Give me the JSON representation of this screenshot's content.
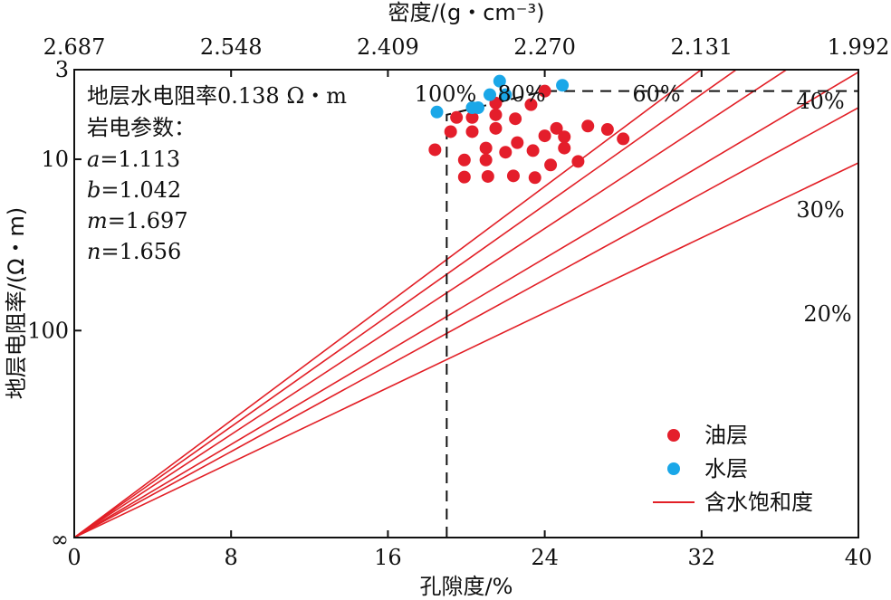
{
  "chart_data": {
    "type": "scatter",
    "x_axis": {
      "label": "孔隙度/%",
      "range": [
        0,
        40
      ],
      "ticks": [
        "0",
        "8",
        "16",
        "24",
        "32",
        "40"
      ]
    },
    "top_axis": {
      "label": "密度/(g・cm⁻³)",
      "ticks": [
        "2.687",
        "2.548",
        "2.409",
        "2.270",
        "2.131",
        "1.992"
      ]
    },
    "y_axis": {
      "label": "地层电阻率/(Ω・m)",
      "scale": "log",
      "inverted": true,
      "ticks": [
        "3",
        "10",
        "100",
        "∞"
      ]
    },
    "annotation": {
      "line1": "地层水电阻率0.138 Ω・m",
      "line2": "岩电参数：",
      "params": [
        {
          "sym": "a",
          "val": "=1.113"
        },
        {
          "sym": "b",
          "val": "=1.042"
        },
        {
          "sym": "m",
          "val": "=1.697"
        },
        {
          "sym": "n",
          "val": "=1.656"
        }
      ]
    },
    "saturation_lines": [
      {
        "label": "100%",
        "resistivity_at_40": 0.62
      },
      {
        "label": "80%",
        "resistivity_at_40": 0.94
      },
      {
        "label": "60%",
        "resistivity_at_40": 1.59
      },
      {
        "label": "40%",
        "resistivity_at_40": 3.1
      },
      {
        "label": "30%",
        "resistivity_at_40": 5.0
      },
      {
        "label": "20%",
        "resistivity_at_40": 10.5
      }
    ],
    "series": [
      {
        "name": "油层",
        "color": "#e41e2b",
        "points": [
          [
            24.0,
            4.0
          ],
          [
            21.5,
            4.7
          ],
          [
            23.3,
            4.8
          ],
          [
            19.5,
            5.7
          ],
          [
            20.3,
            5.7
          ],
          [
            21.5,
            5.5
          ],
          [
            22.5,
            5.8
          ],
          [
            19.2,
            6.9
          ],
          [
            20.3,
            6.9
          ],
          [
            21.5,
            6.6
          ],
          [
            24.6,
            6.6
          ],
          [
            26.2,
            6.4
          ],
          [
            27.2,
            6.7
          ],
          [
            24.0,
            7.3
          ],
          [
            25.0,
            7.4
          ],
          [
            28.0,
            7.6
          ],
          [
            22.6,
            8.0
          ],
          [
            18.4,
            8.8
          ],
          [
            21.0,
            8.6
          ],
          [
            22.0,
            9.1
          ],
          [
            23.4,
            8.9
          ],
          [
            25.0,
            8.6
          ],
          [
            19.9,
            10.1
          ],
          [
            21.0,
            10.1
          ],
          [
            24.3,
            10.8
          ],
          [
            25.7,
            10.3
          ],
          [
            19.9,
            12.7
          ],
          [
            21.1,
            12.6
          ],
          [
            22.4,
            12.5
          ],
          [
            23.5,
            12.8
          ]
        ]
      },
      {
        "name": "水层",
        "color": "#1aa7e8",
        "points": [
          [
            21.7,
            3.5
          ],
          [
            24.9,
            3.7
          ],
          [
            21.2,
            4.2
          ],
          [
            22.0,
            4.2
          ],
          [
            20.3,
            5.0
          ],
          [
            20.6,
            5.0
          ],
          [
            18.5,
            5.3
          ]
        ]
      }
    ],
    "cutoffs": {
      "porosity": 19.0,
      "resistivity": 4.0
    },
    "legend": {
      "position": "bottom-right",
      "items": [
        "油层",
        "水层",
        "含水饱和度"
      ]
    }
  }
}
